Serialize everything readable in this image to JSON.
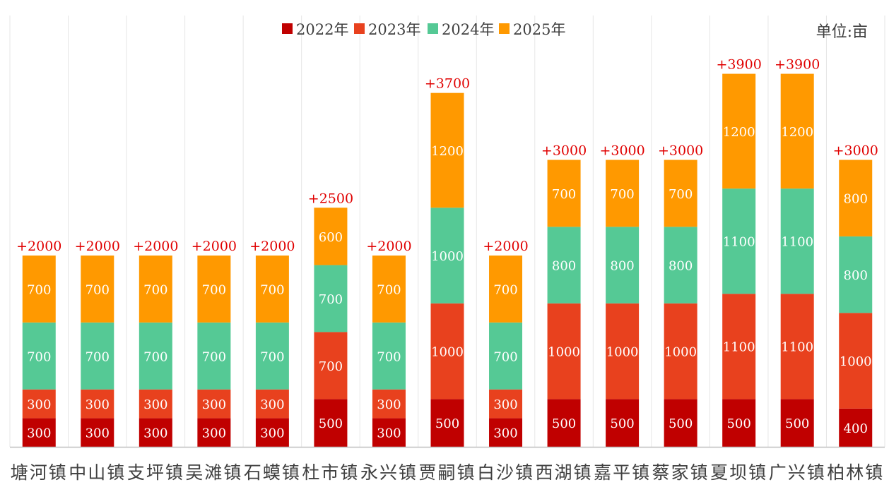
{
  "chart_data": {
    "type": "bar",
    "stacked": true,
    "unit_label": "单位:亩",
    "categories": [
      "塘河镇",
      "中山镇",
      "支坪镇",
      "吴滩镇",
      "石蟆镇",
      "杜市镇",
      "永兴镇",
      "贾嗣镇",
      "白沙镇",
      "西湖镇",
      "嘉平镇",
      "蔡家镇",
      "夏坝镇",
      "广兴镇",
      "柏林镇"
    ],
    "series": [
      {
        "name": "2022年",
        "color": "#C00000",
        "values": [
          300,
          300,
          300,
          300,
          300,
          500,
          300,
          500,
          300,
          500,
          500,
          500,
          500,
          500,
          400
        ]
      },
      {
        "name": "2023年",
        "color": "#E8411E",
        "values": [
          300,
          300,
          300,
          300,
          300,
          700,
          300,
          1000,
          300,
          1000,
          1000,
          1000,
          1100,
          1100,
          1000
        ]
      },
      {
        "name": "2024年",
        "color": "#55C995",
        "values": [
          700,
          700,
          700,
          700,
          700,
          700,
          700,
          1000,
          700,
          800,
          800,
          800,
          1100,
          1100,
          800
        ]
      },
      {
        "name": "2025年",
        "color": "#FF9900",
        "values": [
          700,
          700,
          700,
          700,
          700,
          600,
          700,
          1200,
          700,
          700,
          700,
          700,
          1200,
          1200,
          800
        ]
      }
    ],
    "totals_labels": [
      "+2000",
      "+2000",
      "+2000",
      "+2000",
      "+2000",
      "+2500",
      "+2000",
      "+3700",
      "+2000",
      "+3000",
      "+3000",
      "+3000",
      "+3900",
      "+3900",
      "+3000"
    ],
    "ylim": [
      0,
      4200
    ],
    "legend_position": "top-center",
    "grid": false,
    "colors": {
      "total_label": "#E00000",
      "separator": "#E6E6E6",
      "axis": "#BFBFBF",
      "text": "#404040",
      "on_bar_text": "#ffffff"
    }
  }
}
